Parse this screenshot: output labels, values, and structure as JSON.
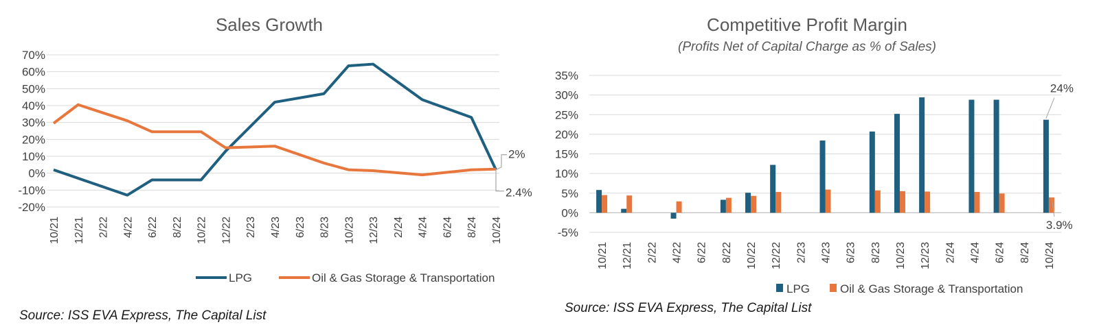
{
  "colors": {
    "lpg": "#1f5f7f",
    "oil": "#e8773d",
    "grid": "#d9d9d9",
    "text": "#404040"
  },
  "chart_data": [
    {
      "type": "line",
      "title": "Sales Growth",
      "x": [
        "10/21",
        "12/21",
        "2/22",
        "4/22",
        "6/22",
        "8/22",
        "10/22",
        "12/22",
        "2/23",
        "4/23",
        "6/23",
        "8/23",
        "10/23",
        "12/23",
        "2/24",
        "4/24",
        "6/24",
        "8/24",
        "10/24"
      ],
      "x_tick_labels": [
        "10/21",
        "12/21",
        "2/22",
        "4/22",
        "6/22",
        "8/22",
        "10/22",
        "12/22",
        "2/23",
        "4/23",
        "6/23",
        "8/23",
        "10/23",
        "12/23",
        "2/24",
        "4/24",
        "6/24",
        "8/24",
        "10/24"
      ],
      "series": [
        {
          "name": "LPG",
          "values": [
            2,
            -5.5,
            -13,
            -4,
            -4,
            13,
            42,
            47,
            63.5,
            64.5,
            43.5,
            33,
            2
          ],
          "x": [
            "10/21",
            "3/22",
            "4/22",
            "6/22",
            "10/22",
            "12/22",
            "4/23",
            "8/23",
            "10/23",
            "12/23",
            "4/24",
            "8/24",
            "10/24"
          ]
        },
        {
          "name": "Oil & Gas Storage & Transportation",
          "values": [
            29.5,
            40.5,
            31,
            24.5,
            24.5,
            15,
            16,
            6,
            2,
            1.5,
            -1,
            2,
            2.4
          ],
          "x": [
            "10/21",
            "12/21",
            "4/22",
            "6/22",
            "10/22",
            "12/22",
            "4/23",
            "8/23",
            "10/23",
            "12/23",
            "4/24",
            "8/24",
            "10/24"
          ]
        }
      ],
      "ylim": [
        -20,
        70
      ],
      "y_ticks": [
        "70%",
        "60%",
        "50%",
        "40%",
        "30%",
        "20%",
        "10%",
        "0%",
        "-10%",
        "-20%"
      ],
      "annotations": [
        "2%",
        "2.4%"
      ],
      "legend": "bottom",
      "source": "Source: ISS EVA Express, The Capital List"
    },
    {
      "type": "bar",
      "title": "Competitive Profit Margin",
      "subtitle": "(Profits Net of Capital Charge as % of Sales)",
      "categories": [
        "10/21",
        "12/21",
        "4/22",
        "8/22",
        "10/22",
        "12/22",
        "4/23",
        "8/23",
        "10/23",
        "12/23",
        "4/24",
        "6/24",
        "10/24"
      ],
      "x_tick_labels": [
        "10/21",
        "12/21",
        "2/22",
        "4/22",
        "6/22",
        "8/22",
        "10/22",
        "12/22",
        "2/23",
        "4/23",
        "6/23",
        "8/23",
        "10/23",
        "12/23",
        "2/24",
        "4/24",
        "6/24",
        "8/24",
        "10/24"
      ],
      "series": [
        {
          "name": "LPG",
          "values": [
            5.8,
            1,
            -1.5,
            3.3,
            5.1,
            12.2,
            18.4,
            20.7,
            25.2,
            29.4,
            28.8,
            28.8,
            23.7
          ]
        },
        {
          "name": "Oil & Gas Storage & Transportation",
          "values": [
            4.5,
            4.4,
            2.9,
            3.8,
            4.3,
            5.3,
            5.9,
            5.7,
            5.5,
            5.4,
            5.3,
            4.9,
            3.9
          ]
        }
      ],
      "ylim": [
        -5,
        35
      ],
      "y_ticks": [
        "35%",
        "30%",
        "25%",
        "20%",
        "15%",
        "10%",
        "5%",
        "0%",
        "-5%"
      ],
      "annotations": [
        "24%",
        "3.9%"
      ],
      "legend": "bottom",
      "source": "Source: ISS EVA Express, The Capital List"
    }
  ]
}
